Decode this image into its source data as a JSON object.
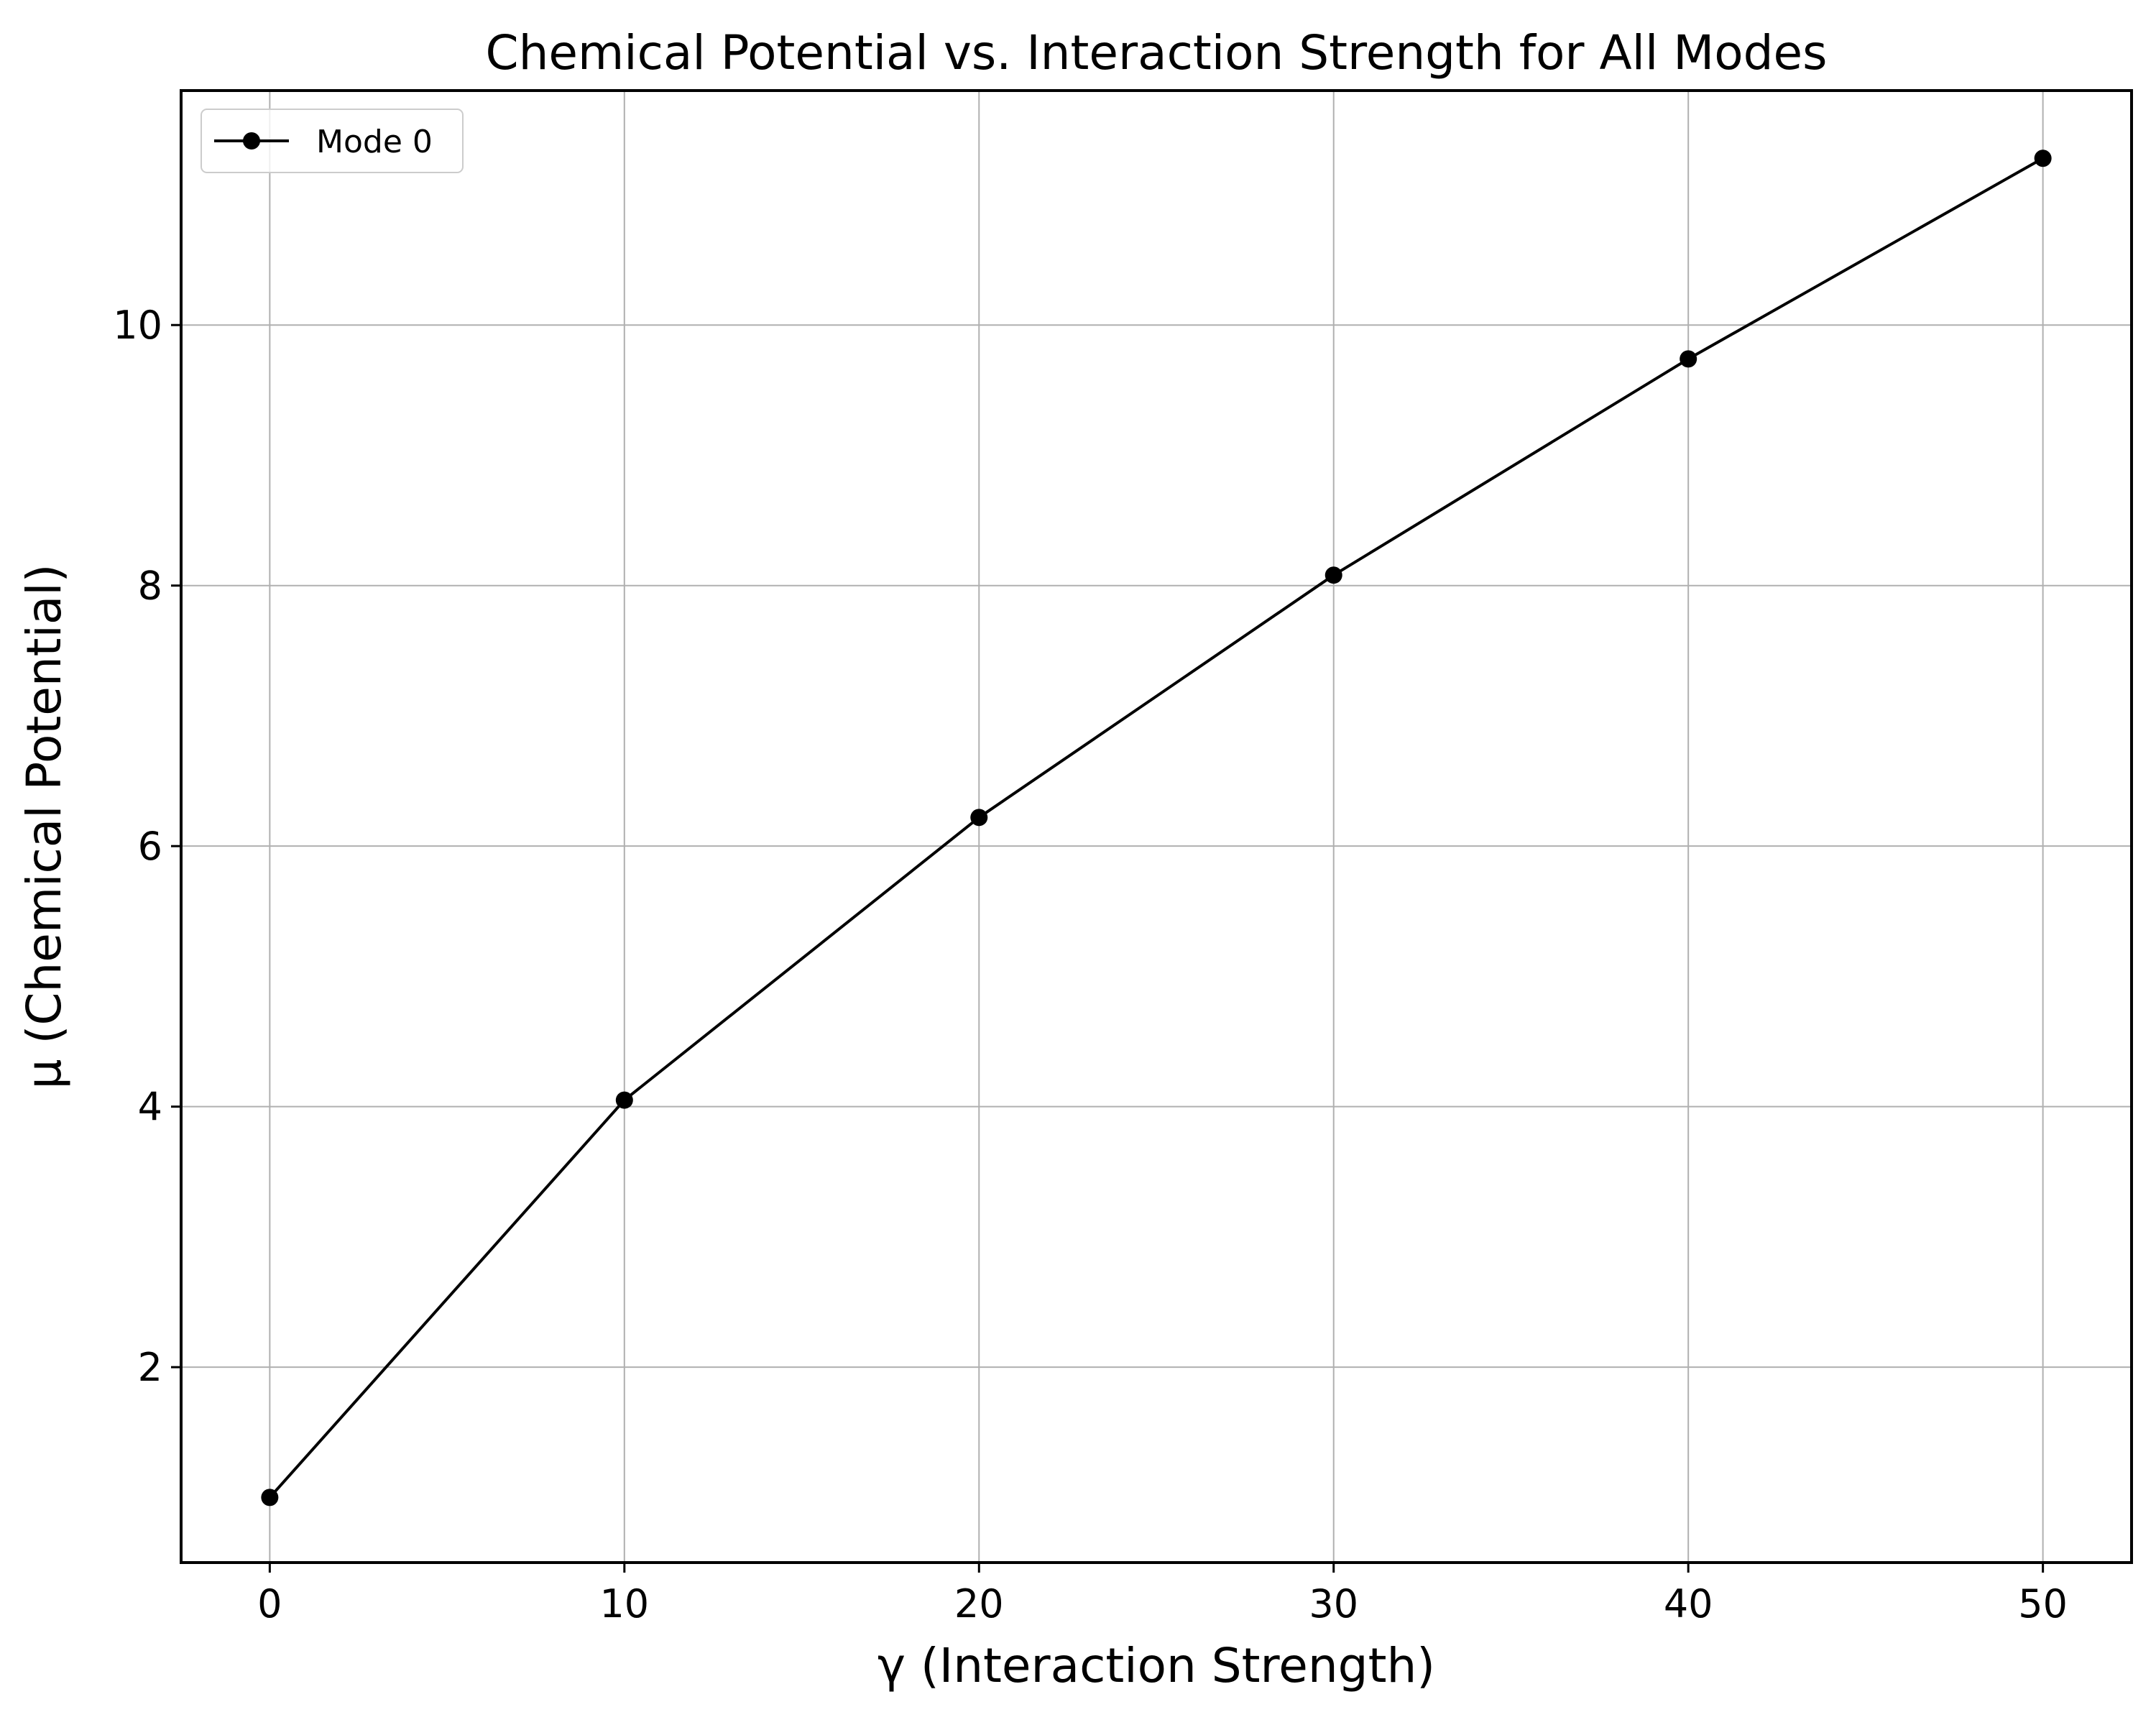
{
  "chart_data": {
    "type": "line",
    "title": "Chemical Potential vs. Interaction Strength for All Modes",
    "xlabel": "γ (Interaction Strength)",
    "ylabel": "μ (Chemical Potential)",
    "xlim": [
      -2.5,
      52.5
    ],
    "ylim": [
      0.5,
      11.8
    ],
    "xticks": [
      0,
      10,
      20,
      30,
      40,
      50
    ],
    "yticks": [
      2,
      4,
      6,
      8,
      10
    ],
    "grid": true,
    "legend_position": "top-left",
    "series": [
      {
        "name": "Mode 0",
        "color": "#000000",
        "marker": "circle",
        "x": [
          0,
          10,
          20,
          30,
          40,
          50
        ],
        "y": [
          1.0,
          4.05,
          6.22,
          8.08,
          9.74,
          11.28
        ]
      }
    ]
  }
}
